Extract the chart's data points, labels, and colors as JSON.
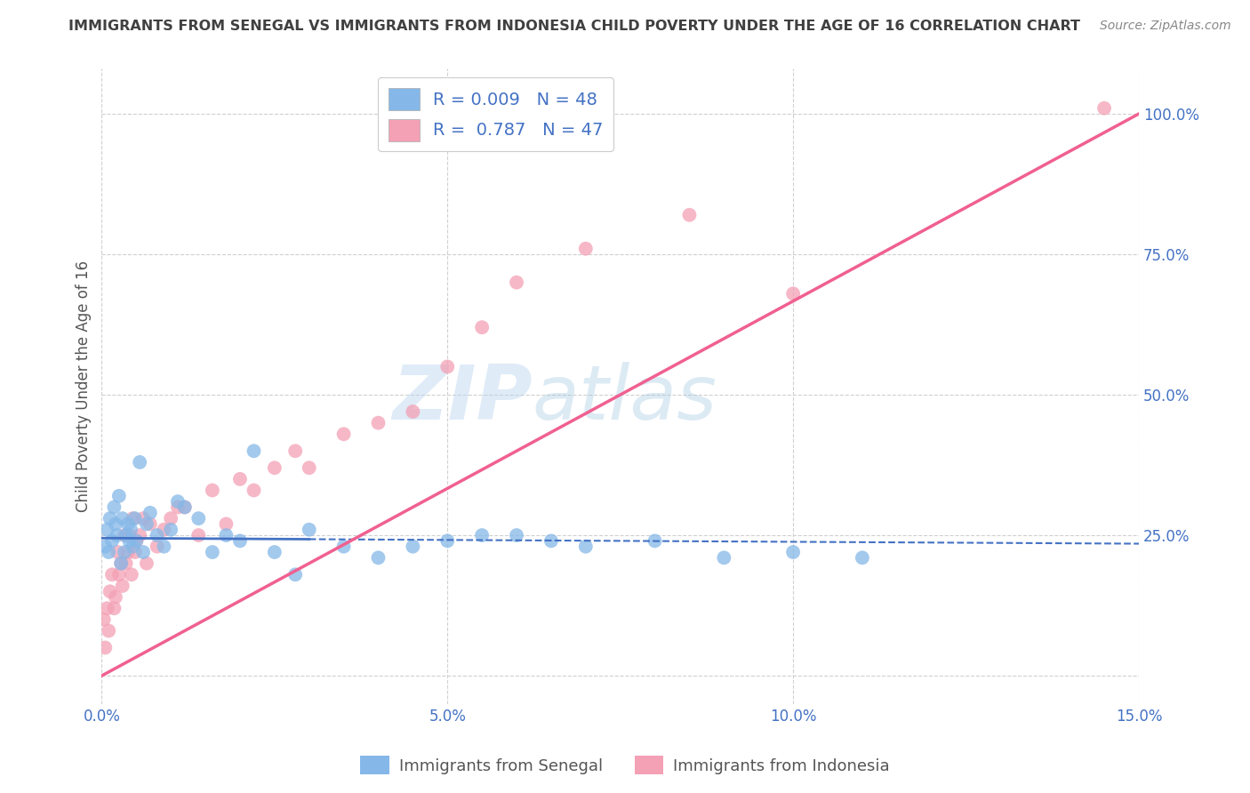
{
  "title": "IMMIGRANTS FROM SENEGAL VS IMMIGRANTS FROM INDONESIA CHILD POVERTY UNDER THE AGE OF 16 CORRELATION CHART",
  "source": "Source: ZipAtlas.com",
  "ylabel": "Child Poverty Under the Age of 16",
  "xlim": [
    0.0,
    15.0
  ],
  "ylim": [
    -5.0,
    108.0
  ],
  "xticks": [
    0.0,
    5.0,
    10.0,
    15.0
  ],
  "xticklabels": [
    "0.0%",
    "5.0%",
    "10.0%",
    "15.0%"
  ],
  "yticks": [
    0,
    25,
    50,
    75,
    100
  ],
  "yticklabels": [
    "",
    "25.0%",
    "50.0%",
    "75.0%",
    "100.0%"
  ],
  "senegal_color": "#85b8e8",
  "indonesia_color": "#f4a0b5",
  "senegal_R": 0.009,
  "senegal_N": 48,
  "indonesia_R": 0.787,
  "indonesia_N": 47,
  "senegal_line_color": "#4472c4",
  "indonesia_line_color": "#f06090",
  "legend_label_senegal": "Immigrants from Senegal",
  "legend_label_indonesia": "Immigrants from Indonesia",
  "watermark_zip": "ZIP",
  "watermark_atlas": "atlas",
  "grid_color": "#d0d0d0",
  "background_color": "#ffffff",
  "title_color": "#404040",
  "axis_label_color": "#555555",
  "tick_color": "#4472c4",
  "senegal_x": [
    0.05,
    0.08,
    0.1,
    0.12,
    0.15,
    0.18,
    0.2,
    0.22,
    0.25,
    0.28,
    0.3,
    0.33,
    0.35,
    0.38,
    0.4,
    0.42,
    0.45,
    0.48,
    0.5,
    0.55,
    0.6,
    0.65,
    0.7,
    0.8,
    0.9,
    1.0,
    1.1,
    1.2,
    1.4,
    1.6,
    1.8,
    2.0,
    2.2,
    2.5,
    2.8,
    3.0,
    3.5,
    4.0,
    4.5,
    5.0,
    5.5,
    6.0,
    6.5,
    7.0,
    8.0,
    9.0,
    10.0,
    11.0
  ],
  "senegal_y": [
    23,
    26,
    22,
    28,
    24,
    30,
    27,
    25,
    32,
    20,
    28,
    22,
    25,
    27,
    24,
    26,
    23,
    28,
    24,
    38,
    22,
    27,
    29,
    25,
    23,
    26,
    31,
    30,
    28,
    22,
    25,
    24,
    40,
    22,
    18,
    26,
    23,
    21,
    23,
    24,
    25,
    25,
    24,
    23,
    24,
    21,
    22,
    21
  ],
  "indonesia_x": [
    0.03,
    0.05,
    0.08,
    0.1,
    0.12,
    0.15,
    0.18,
    0.2,
    0.23,
    0.25,
    0.28,
    0.3,
    0.33,
    0.35,
    0.38,
    0.4,
    0.43,
    0.45,
    0.48,
    0.5,
    0.55,
    0.6,
    0.65,
    0.7,
    0.8,
    0.9,
    1.0,
    1.1,
    1.2,
    1.4,
    1.6,
    1.8,
    2.0,
    2.2,
    2.5,
    2.8,
    3.0,
    3.5,
    4.0,
    4.5,
    5.0,
    5.5,
    6.0,
    7.0,
    8.5,
    10.0,
    14.5
  ],
  "indonesia_y": [
    10,
    5,
    12,
    8,
    15,
    18,
    12,
    14,
    22,
    18,
    20,
    16,
    25,
    20,
    22,
    25,
    18,
    28,
    22,
    24,
    25,
    28,
    20,
    27,
    23,
    26,
    28,
    30,
    30,
    25,
    33,
    27,
    35,
    33,
    37,
    40,
    37,
    43,
    45,
    47,
    55,
    62,
    70,
    76,
    82,
    68,
    101
  ],
  "senegal_line_x": [
    0.0,
    15.0
  ],
  "senegal_line_y": [
    24.5,
    23.5
  ],
  "indonesia_line_x": [
    0.0,
    15.0
  ],
  "indonesia_line_y": [
    0.0,
    100.0
  ]
}
